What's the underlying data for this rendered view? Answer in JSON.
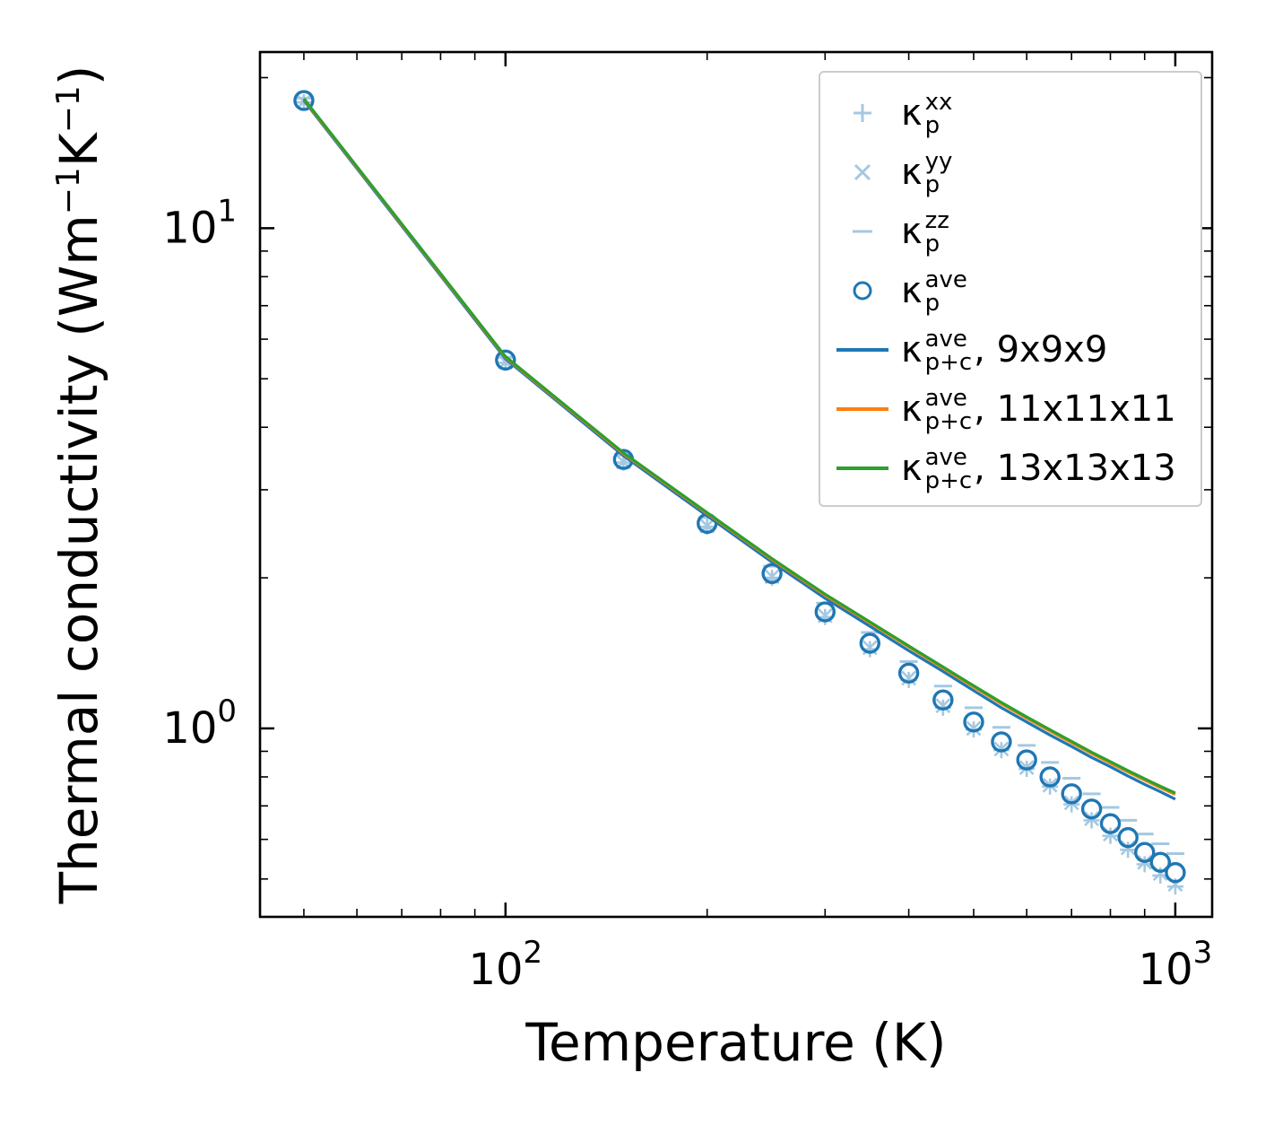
{
  "axes": {
    "xlabel": "Temperature (K)",
    "ylabel_prefix": "Thermal conductivity (Wm",
    "ylabel_sup1": "−1",
    "ylabel_mid": "K",
    "ylabel_sup2": "−1",
    "ylabel_suffix": ")",
    "x_tick_labels": [
      {
        "base": "10",
        "exp": "2",
        "value": 100
      },
      {
        "base": "10",
        "exp": "3",
        "value": 1000
      }
    ],
    "y_tick_labels": [
      {
        "base": "10",
        "exp": "0",
        "value": 1
      },
      {
        "base": "10",
        "exp": "1",
        "value": 10
      }
    ]
  },
  "legend": {
    "entries": [
      {
        "marker": "plus",
        "color": "#a5c8e1",
        "kappa": "κ",
        "sup": "xx",
        "sub": "p",
        "suffix": ""
      },
      {
        "marker": "x",
        "color": "#a5c8e1",
        "kappa": "κ",
        "sup": "yy",
        "sub": "p",
        "suffix": ""
      },
      {
        "marker": "dash",
        "color": "#a5c8e1",
        "kappa": "κ",
        "sup": "zz",
        "sub": "p",
        "suffix": ""
      },
      {
        "marker": "circle",
        "color": "#1f77b4",
        "kappa": "κ",
        "sup": "ave",
        "sub": "p",
        "suffix": ""
      },
      {
        "marker": "line",
        "color": "#1f77b4",
        "kappa": "κ",
        "sup": "ave",
        "sub": "p+c",
        "suffix": ", 9x9x9"
      },
      {
        "marker": "line",
        "color": "#ff7f0e",
        "kappa": "κ",
        "sup": "ave",
        "sub": "p+c",
        "suffix": ", 11x11x11"
      },
      {
        "marker": "line",
        "color": "#2ca02c",
        "kappa": "κ",
        "sup": "ave",
        "sub": "p+c",
        "suffix": ", 13x13x13"
      }
    ]
  },
  "chart_data": {
    "type": "line",
    "title": "",
    "xlabel": "Temperature (K)",
    "ylabel": "Thermal conductivity (Wm−1K−1)",
    "x_scale": "log",
    "y_scale": "log",
    "xlim": [
      43,
      1135
    ],
    "ylim": [
      0.42,
      22.5
    ],
    "grid": false,
    "legend_position": "upper right",
    "x": [
      50,
      100,
      150,
      200,
      250,
      300,
      350,
      400,
      450,
      500,
      550,
      600,
      650,
      700,
      750,
      800,
      850,
      900,
      950,
      1000
    ],
    "series": [
      {
        "name": "kappa_p_xx",
        "style": "plus",
        "color": "#a5c8e1",
        "values": [
          17.85,
          5.38,
          3.4,
          2.53,
          2.0,
          1.67,
          1.44,
          1.25,
          1.1,
          0.995,
          0.905,
          0.83,
          0.765,
          0.705,
          0.655,
          0.61,
          0.572,
          0.535,
          0.508,
          0.483
        ]
      },
      {
        "name": "kappa_p_yy",
        "style": "x",
        "color": "#a5c8e1",
        "values": [
          17.9,
          5.4,
          3.41,
          2.54,
          2.01,
          1.68,
          1.45,
          1.26,
          1.11,
          1.0,
          0.91,
          0.835,
          0.77,
          0.71,
          0.66,
          0.615,
          0.577,
          0.54,
          0.513,
          0.488
        ]
      },
      {
        "name": "kappa_p_zz",
        "style": "dash",
        "color": "#a5c8e1",
        "values": [
          18.2,
          5.52,
          3.52,
          2.64,
          2.11,
          1.78,
          1.555,
          1.36,
          1.215,
          1.1,
          1.005,
          0.925,
          0.855,
          0.795,
          0.74,
          0.695,
          0.655,
          0.615,
          0.588,
          0.562
        ]
      },
      {
        "name": "kappa_p_ave",
        "style": "circle",
        "color": "#1f77b4",
        "values": [
          18.0,
          5.45,
          3.45,
          2.57,
          2.04,
          1.71,
          1.48,
          1.29,
          1.14,
          1.03,
          0.94,
          0.865,
          0.8,
          0.74,
          0.69,
          0.645,
          0.605,
          0.565,
          0.54,
          0.515
        ]
      },
      {
        "name": "kappa_p_plus_c_ave_9x9x9",
        "style": "line",
        "color": "#1f77b4",
        "values": [
          18.0,
          5.48,
          3.51,
          2.66,
          2.15,
          1.82,
          1.6,
          1.43,
          1.3,
          1.19,
          1.1,
          1.03,
          0.97,
          0.92,
          0.875,
          0.838,
          0.803,
          0.773,
          0.747,
          0.722
        ]
      },
      {
        "name": "kappa_p_plus_c_ave_11x11x11",
        "style": "line",
        "color": "#ff7f0e",
        "values": [
          18.1,
          5.52,
          3.54,
          2.69,
          2.175,
          1.845,
          1.625,
          1.455,
          1.32,
          1.21,
          1.12,
          1.048,
          0.988,
          0.936,
          0.891,
          0.852,
          0.818,
          0.788,
          0.761,
          0.738
        ]
      },
      {
        "name": "kappa_p_plus_c_ave_13x13x13",
        "style": "line",
        "color": "#2ca02c",
        "values": [
          18.15,
          5.54,
          3.555,
          2.7,
          2.185,
          1.855,
          1.633,
          1.462,
          1.327,
          1.217,
          1.127,
          1.054,
          0.994,
          0.942,
          0.896,
          0.858,
          0.823,
          0.793,
          0.766,
          0.743
        ]
      }
    ]
  }
}
